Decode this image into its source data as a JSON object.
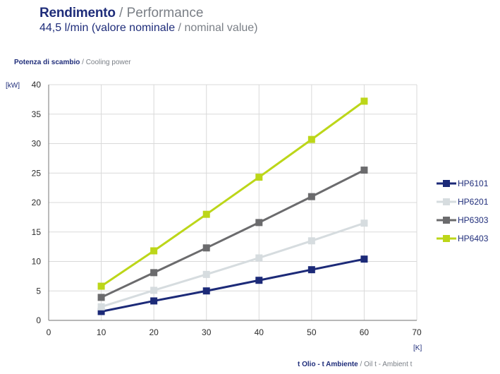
{
  "header": {
    "title_main": "Rendimento",
    "title_sep": " / ",
    "title_en": "Performance",
    "subtitle_it": "44,5 l/min (valore nominale",
    "subtitle_sep": " / ",
    "subtitle_en": "nominal value)"
  },
  "axes": {
    "y_title_it": "Potenza di scambio",
    "y_title_sep": " / ",
    "y_title_en": "Cooling power",
    "x_title_it": "t Olio - t Ambiente",
    "x_title_sep": " / ",
    "x_title_en": "Oil t - Ambient t",
    "y_unit": "[kW]",
    "x_unit": "[K]"
  },
  "colors": {
    "grid": "#d9d9d9",
    "axis": "#8c8c8c",
    "brand_blue": "#1f2d7a",
    "muted_gray": "#7a7f86"
  },
  "chart_data": {
    "type": "line",
    "xlim": [
      0,
      70
    ],
    "ylim": [
      0,
      40
    ],
    "x_ticks": [
      0,
      10,
      20,
      30,
      40,
      50,
      60,
      70
    ],
    "y_ticks": [
      0,
      5,
      10,
      15,
      20,
      25,
      30,
      35,
      40
    ],
    "grid": true,
    "legend_position": "right",
    "x": [
      10,
      20,
      30,
      40,
      50,
      60
    ],
    "series": [
      {
        "name": "HP6101",
        "color": "#1c2a78",
        "marker": "square",
        "values": [
          1.5,
          3.3,
          5.0,
          6.8,
          8.6,
          10.4
        ]
      },
      {
        "name": "HP6201",
        "color": "#d6dcdf",
        "marker": "square",
        "values": [
          2.3,
          5.1,
          7.8,
          10.6,
          13.5,
          16.5
        ]
      },
      {
        "name": "HP6303",
        "color": "#6b6b6d",
        "marker": "square",
        "values": [
          3.9,
          8.1,
          12.3,
          16.6,
          21.0,
          25.5
        ]
      },
      {
        "name": "HP6403",
        "color": "#bcd619",
        "marker": "square",
        "values": [
          5.8,
          11.8,
          18.0,
          24.3,
          30.7,
          37.2
        ]
      }
    ]
  }
}
